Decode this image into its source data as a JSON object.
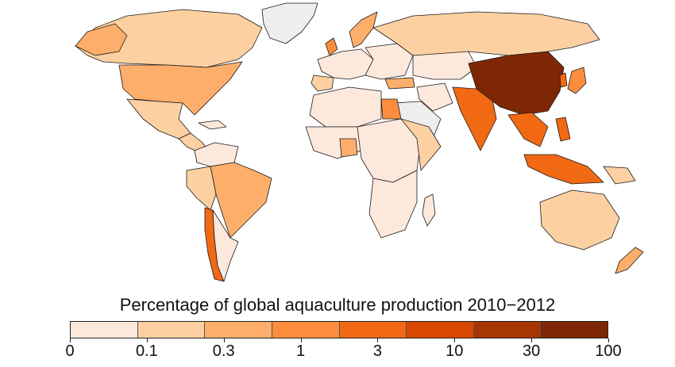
{
  "legend": {
    "title": "Percentage of global aquaculture production 2010−2012",
    "ticks": [
      "0",
      "0.1",
      "0.3",
      "1",
      "3",
      "10",
      "30",
      "100"
    ],
    "colors": [
      "#fde9dc",
      "#fdd0a2",
      "#fdae6b",
      "#fd8d3c",
      "#f16913",
      "#d94801",
      "#a63603",
      "#7f2704"
    ],
    "no_data_color": "#eeeeee"
  },
  "regions": [
    {
      "name": "China",
      "class": 7
    },
    {
      "name": "India",
      "class": 5
    },
    {
      "name": "Southeast Asia",
      "class": 5
    },
    {
      "name": "Indonesia",
      "class": 5
    },
    {
      "name": "Japan",
      "class": 3
    },
    {
      "name": "Korea",
      "class": 4
    },
    {
      "name": "Egypt",
      "class": 3
    },
    {
      "name": "Chile",
      "class": 4
    },
    {
      "name": "Norway",
      "class": 3
    },
    {
      "name": "United States",
      "class": 2
    },
    {
      "name": "Brazil",
      "class": 2
    },
    {
      "name": "Canada",
      "class": 1
    },
    {
      "name": "Russia",
      "class": 1
    },
    {
      "name": "Australia",
      "class": 1
    },
    {
      "name": "New Zealand",
      "class": 2
    },
    {
      "name": "Mexico",
      "class": 1
    },
    {
      "name": "Nigeria",
      "class": 2
    },
    {
      "name": "Greenland",
      "class": -1
    }
  ]
}
